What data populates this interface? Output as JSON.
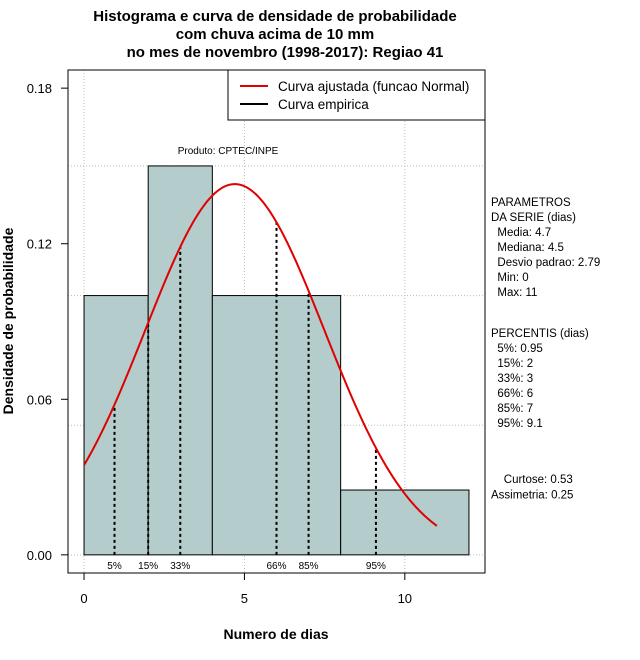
{
  "chart_data": {
    "type": "bar",
    "title_lines": [
      "Histograma e curva de densidade de probabilidade",
      "com chuva acima de 10 mm",
      "no mes de novembro (1998-2017): Regiao 41"
    ],
    "xlabel": "Numero de dias",
    "ylabel": "Densidade de probabilidade",
    "xlim": [
      -0.5,
      12.5
    ],
    "ylim": [
      -0.007,
      0.187
    ],
    "x_ticks": [
      0,
      5,
      10
    ],
    "y_ticks": [
      0.0,
      0.06,
      0.12,
      0.18
    ],
    "x_tick_labels": [
      "0",
      "5",
      "10"
    ],
    "y_tick_labels": [
      "0.00",
      "0.06",
      "0.12",
      "0.18"
    ],
    "grid": true,
    "bins": [
      {
        "from": 0,
        "to": 2,
        "density": 0.1
      },
      {
        "from": 2,
        "to": 4,
        "density": 0.15
      },
      {
        "from": 4,
        "to": 8,
        "density": 0.1
      },
      {
        "from": 8,
        "to": 12,
        "density": 0.025
      }
    ],
    "bar_color": "#b4cccc",
    "fitted_curve": {
      "name": "Curva ajustada (funcao Normal)",
      "color": "#e00000",
      "x_range": [
        0,
        11
      ],
      "note": "Normal density with media 4.7 and desvio padrao 2.79"
    },
    "empirical_curve": {
      "name": "Curva empirica",
      "color": "#000000"
    },
    "legend_position": "top-right",
    "annotation": "Produto: CPTEC/INPE",
    "percentile_lines": [
      {
        "label": "5%",
        "x": 0.95
      },
      {
        "label": "15%",
        "x": 2
      },
      {
        "label": "33%",
        "x": 3
      },
      {
        "label": "66%",
        "x": 6
      },
      {
        "label": "85%",
        "x": 7
      },
      {
        "label": "95%",
        "x": 9.1
      }
    ],
    "mean": 4.7,
    "sd": 2.79
  },
  "side_panel": {
    "params_lines": [
      "PARAMETROS",
      "DA SERIE (dias)",
      "  Media: 4.7",
      "  Mediana: 4.5",
      "  Desvio padrao: 2.79",
      "  Min: 0",
      "  Max: 11"
    ],
    "percentis_lines": [
      "PERCENTIS (dias)",
      "  5%: 0.95",
      "  15%: 2",
      "  33%: 3",
      "  66%: 6",
      "  85%: 7",
      "  95%: 9.1"
    ],
    "shape_lines": [
      "    Curtose: 0.53",
      "Assimetria: 0.25"
    ]
  }
}
